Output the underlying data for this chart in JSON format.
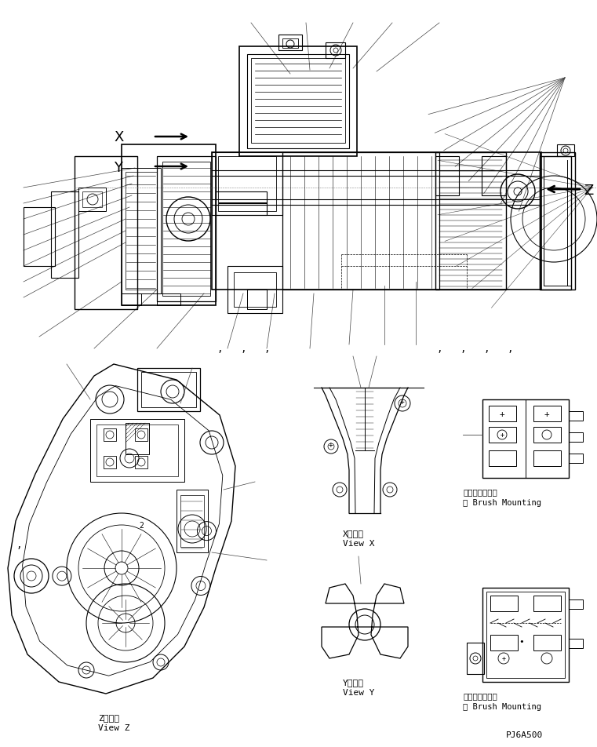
{
  "bg_color": "#ffffff",
  "fig_width": 7.61,
  "fig_height": 9.53,
  "dpi": 100,
  "labels": {
    "view_z_ja": "Z　　視",
    "view_z_en": "View Z",
    "view_x_ja": "X　　視",
    "view_x_en": "View X",
    "view_y_ja": "Y　　視",
    "view_y_en": "View Y",
    "brush_top_ja": "①ブラシ取付法",
    "brush_top_en": "① Brush Mounting",
    "brush_bot_ja": "②ブラシ取付法",
    "brush_bot_en": "② Brush Mounting",
    "part_code": "PJ6A500",
    "X_label": "X",
    "Y_label": "Y",
    "Z_label": "Z",
    "comma_positions": [
      280,
      310,
      340,
      560,
      590,
      620,
      650
    ]
  }
}
